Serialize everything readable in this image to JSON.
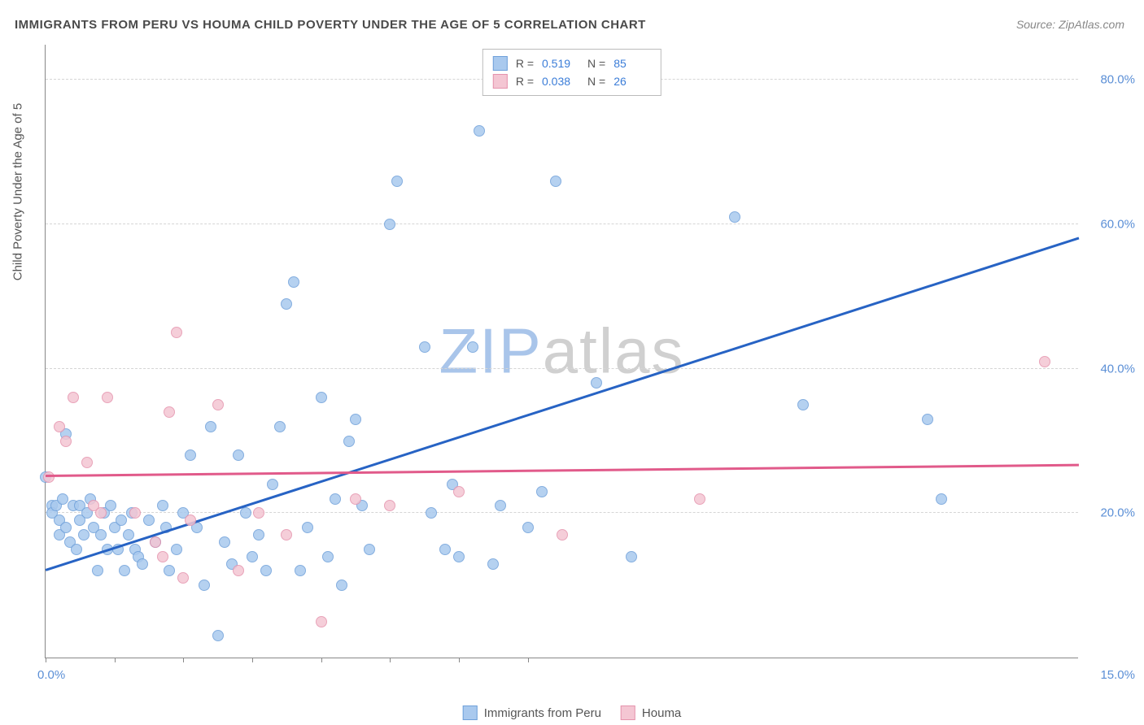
{
  "title": "IMMIGRANTS FROM PERU VS HOUMA CHILD POVERTY UNDER THE AGE OF 5 CORRELATION CHART",
  "source_label": "Source: ZipAtlas.com",
  "y_axis_label": "Child Poverty Under the Age of 5",
  "watermark": {
    "zip": "ZIP",
    "atlas": "atlas",
    "zip_color": "#a9c5ea",
    "atlas_color": "#d0d0d0"
  },
  "chart": {
    "type": "scatter",
    "xlim": [
      0,
      15
    ],
    "ylim": [
      0,
      85
    ],
    "x_tick_labels": {
      "min": "0.0%",
      "max": "15.0%"
    },
    "x_minor_ticks": [
      0,
      1,
      2,
      3,
      4,
      5,
      6,
      7
    ],
    "y_gridlines": [
      20,
      40,
      60,
      80
    ],
    "y_tick_labels": [
      "20.0%",
      "40.0%",
      "60.0%",
      "80.0%"
    ],
    "background_color": "#ffffff",
    "grid_color": "#d5d5d5",
    "axis_color": "#888888",
    "label_color": "#5b8fd6",
    "series": [
      {
        "name": "Immigrants from Peru",
        "fill": "#a9c9ee",
        "stroke": "#6fa0da",
        "trend_color": "#2763c4",
        "r_label": "R =",
        "r_value": "0.519",
        "n_label": "N =",
        "n_value": "85",
        "trend": {
          "x1": 0,
          "y1": 12,
          "x2": 15,
          "y2": 58
        },
        "points": [
          [
            0.0,
            25
          ],
          [
            0.1,
            21
          ],
          [
            0.1,
            20
          ],
          [
            0.15,
            21
          ],
          [
            0.2,
            17
          ],
          [
            0.2,
            19
          ],
          [
            0.25,
            22
          ],
          [
            0.3,
            18
          ],
          [
            0.3,
            31
          ],
          [
            0.35,
            16
          ],
          [
            0.4,
            21
          ],
          [
            0.45,
            15
          ],
          [
            0.5,
            21
          ],
          [
            0.5,
            19
          ],
          [
            0.55,
            17
          ],
          [
            0.6,
            20
          ],
          [
            0.65,
            22
          ],
          [
            0.7,
            18
          ],
          [
            0.75,
            12
          ],
          [
            0.8,
            17
          ],
          [
            0.85,
            20
          ],
          [
            0.9,
            15
          ],
          [
            0.95,
            21
          ],
          [
            1.0,
            18
          ],
          [
            1.05,
            15
          ],
          [
            1.1,
            19
          ],
          [
            1.15,
            12
          ],
          [
            1.2,
            17
          ],
          [
            1.25,
            20
          ],
          [
            1.3,
            15
          ],
          [
            1.35,
            14
          ],
          [
            1.4,
            13
          ],
          [
            1.5,
            19
          ],
          [
            1.6,
            16
          ],
          [
            1.7,
            21
          ],
          [
            1.75,
            18
          ],
          [
            1.8,
            12
          ],
          [
            1.9,
            15
          ],
          [
            2.0,
            20
          ],
          [
            2.1,
            28
          ],
          [
            2.2,
            18
          ],
          [
            2.3,
            10
          ],
          [
            2.4,
            32
          ],
          [
            2.5,
            3
          ],
          [
            2.6,
            16
          ],
          [
            2.7,
            13
          ],
          [
            2.8,
            28
          ],
          [
            2.9,
            20
          ],
          [
            3.0,
            14
          ],
          [
            3.1,
            17
          ],
          [
            3.2,
            12
          ],
          [
            3.3,
            24
          ],
          [
            3.4,
            32
          ],
          [
            3.5,
            49
          ],
          [
            3.6,
            52
          ],
          [
            3.7,
            12
          ],
          [
            3.8,
            18
          ],
          [
            4.0,
            36
          ],
          [
            4.1,
            14
          ],
          [
            4.2,
            22
          ],
          [
            4.3,
            10
          ],
          [
            4.4,
            30
          ],
          [
            4.5,
            33
          ],
          [
            4.6,
            21
          ],
          [
            4.7,
            15
          ],
          [
            5.0,
            60
          ],
          [
            5.1,
            66
          ],
          [
            5.5,
            43
          ],
          [
            5.6,
            20
          ],
          [
            5.8,
            15
          ],
          [
            5.9,
            24
          ],
          [
            6.0,
            14
          ],
          [
            6.2,
            43
          ],
          [
            6.3,
            73
          ],
          [
            6.5,
            13
          ],
          [
            6.6,
            21
          ],
          [
            7.0,
            18
          ],
          [
            7.2,
            23
          ],
          [
            7.4,
            66
          ],
          [
            8.0,
            38
          ],
          [
            8.5,
            14
          ],
          [
            10.0,
            61
          ],
          [
            11.0,
            35
          ],
          [
            12.8,
            33
          ],
          [
            13.0,
            22
          ]
        ]
      },
      {
        "name": "Houma",
        "fill": "#f4c6d3",
        "stroke": "#e593ad",
        "trend_color": "#e15a8a",
        "r_label": "R =",
        "r_value": "0.038",
        "n_label": "N =",
        "n_value": "26",
        "trend": {
          "x1": 0,
          "y1": 25,
          "x2": 15,
          "y2": 26.5
        },
        "points": [
          [
            0.05,
            25
          ],
          [
            0.2,
            32
          ],
          [
            0.3,
            30
          ],
          [
            0.4,
            36
          ],
          [
            0.6,
            27
          ],
          [
            0.7,
            21
          ],
          [
            0.8,
            20
          ],
          [
            0.9,
            36
          ],
          [
            1.3,
            20
          ],
          [
            1.6,
            16
          ],
          [
            1.7,
            14
          ],
          [
            1.8,
            34
          ],
          [
            1.9,
            45
          ],
          [
            2.0,
            11
          ],
          [
            2.1,
            19
          ],
          [
            2.5,
            35
          ],
          [
            2.8,
            12
          ],
          [
            3.1,
            20
          ],
          [
            3.5,
            17
          ],
          [
            4.0,
            5
          ],
          [
            4.5,
            22
          ],
          [
            5.0,
            21
          ],
          [
            6.0,
            23
          ],
          [
            7.5,
            17
          ],
          [
            9.5,
            22
          ],
          [
            14.5,
            41
          ]
        ]
      }
    ]
  },
  "legend_bottom": [
    {
      "label": "Immigrants from Peru",
      "fill": "#a9c9ee",
      "stroke": "#6fa0da"
    },
    {
      "label": "Houma",
      "fill": "#f4c6d3",
      "stroke": "#e593ad"
    }
  ]
}
